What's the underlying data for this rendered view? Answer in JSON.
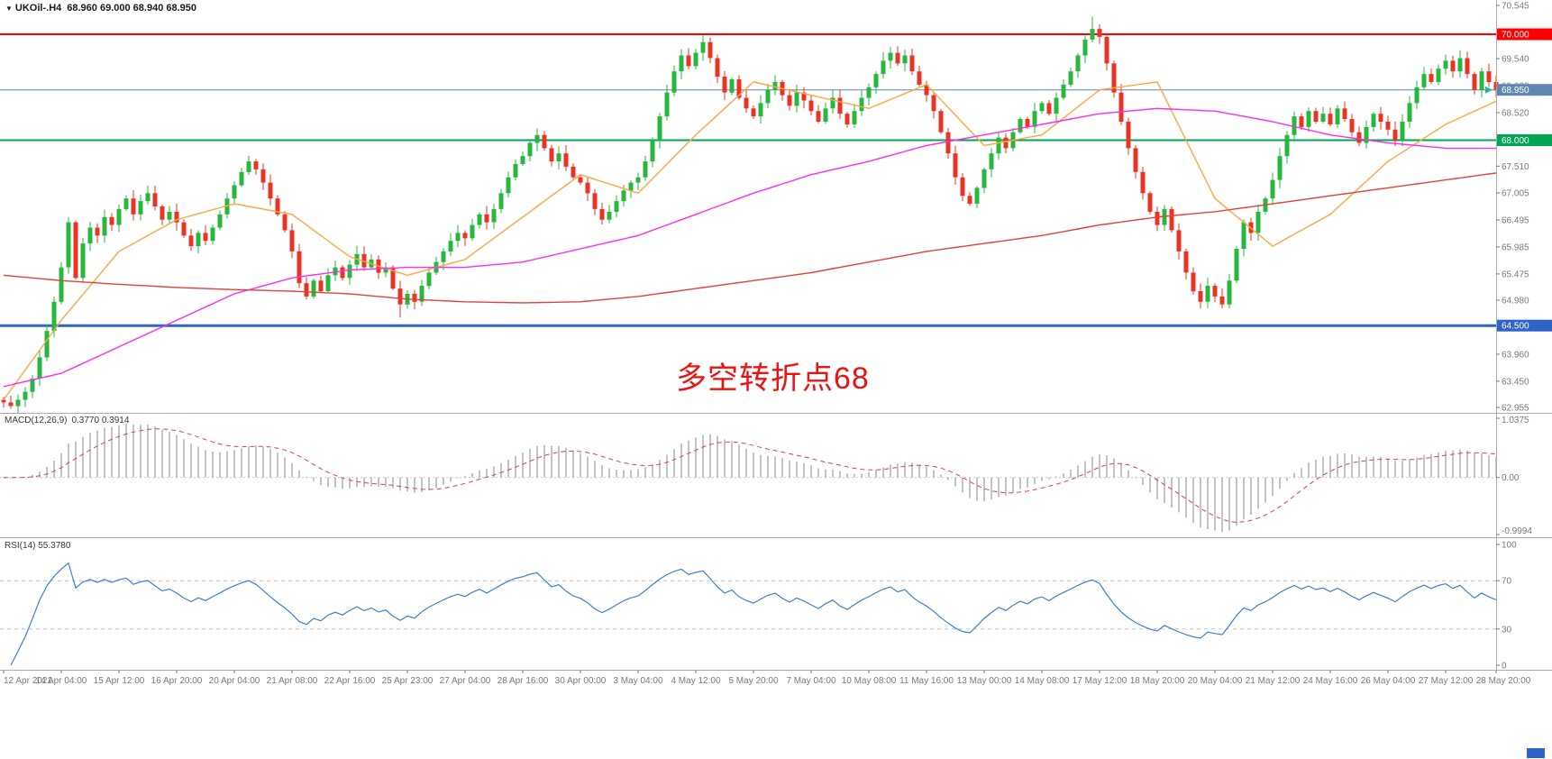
{
  "header": {
    "collapse_icon": "▼",
    "symbol": "UKOil-.H4",
    "ohlc": "68.960 69.000 68.940 68.950"
  },
  "chart_data": {
    "type": "candlestick",
    "symbol": "UKOil-",
    "timeframe": "H4",
    "ylim": [
      62.955,
      70.545
    ],
    "colors": {
      "up": "#25B83C",
      "down": "#EF3124",
      "ma_fast": "#FFA640",
      "ma_mid": "#FF2BF2",
      "ma_slow": "#E34234",
      "level_red": "#FF0000",
      "level_green": "#00A651",
      "level_blue": "#2E64C8",
      "current": "#5F87B0",
      "marker": "#20B2AA",
      "axis_text": "#7A7A7A",
      "separator": "#ADADAD",
      "macd_hist": "#ABABAB",
      "macd_signal": "#D94343",
      "rsi_line": "#3E7FD4",
      "annotation": "#EE1111"
    },
    "price_axis_labels": [
      {
        "v": 70.545,
        "t": "70.545",
        "k": "tick"
      },
      {
        "v": 70.0,
        "t": "70.000",
        "k": "red"
      },
      {
        "v": 69.54,
        "t": "69.540",
        "k": "tick"
      },
      {
        "v": 69.03,
        "t": "69.030",
        "k": "tick"
      },
      {
        "v": 68.95,
        "t": "68.950",
        "k": "current"
      },
      {
        "v": 68.52,
        "t": "68.520",
        "k": "tick"
      },
      {
        "v": 68.0,
        "t": "68.000",
        "k": "green"
      },
      {
        "v": 67.51,
        "t": "67.510",
        "k": "tick"
      },
      {
        "v": 67.005,
        "t": "67.005",
        "k": "tick"
      },
      {
        "v": 66.495,
        "t": "66.495",
        "k": "tick"
      },
      {
        "v": 65.985,
        "t": "65.985",
        "k": "tick"
      },
      {
        "v": 65.475,
        "t": "65.475",
        "k": "tick"
      },
      {
        "v": 64.98,
        "t": "64.980",
        "k": "tick"
      },
      {
        "v": 64.5,
        "t": "64.500",
        "k": "blue"
      },
      {
        "v": 63.96,
        "t": "63.960",
        "k": "tick"
      },
      {
        "v": 63.45,
        "t": "63.450",
        "k": "tick"
      },
      {
        "v": 62.955,
        "t": "62.955",
        "k": "tick"
      }
    ],
    "levels": [
      {
        "price": 70.0,
        "color": "#FF0000",
        "width": 2
      },
      {
        "price": 68.95,
        "color": "#5F87B0",
        "width": 1
      },
      {
        "price": 68.0,
        "color": "#00A651",
        "width": 2
      },
      {
        "price": 64.5,
        "color": "#2E64C8",
        "width": 3
      }
    ],
    "candles": {
      "open_first": 63.1,
      "closes": [
        63.05,
        62.98,
        63.1,
        63.25,
        63.5,
        63.9,
        64.4,
        64.95,
        65.6,
        66.45,
        65.4,
        66.05,
        66.35,
        66.2,
        66.55,
        66.4,
        66.7,
        66.9,
        66.6,
        66.85,
        67.0,
        66.75,
        66.5,
        66.65,
        66.45,
        66.2,
        66.0,
        66.25,
        66.1,
        66.35,
        66.6,
        66.9,
        67.15,
        67.4,
        67.6,
        67.45,
        67.2,
        66.9,
        66.6,
        66.3,
        65.9,
        65.3,
        65.05,
        65.35,
        65.15,
        65.45,
        65.6,
        65.4,
        65.65,
        65.85,
        65.6,
        65.75,
        65.5,
        65.6,
        65.2,
        64.9,
        65.1,
        64.95,
        65.25,
        65.5,
        65.7,
        65.9,
        66.1,
        66.25,
        66.15,
        66.4,
        66.6,
        66.45,
        66.7,
        67.0,
        67.3,
        67.55,
        67.7,
        67.95,
        68.1,
        67.85,
        67.6,
        67.75,
        67.5,
        67.3,
        67.2,
        67.0,
        66.7,
        66.5,
        66.65,
        66.85,
        67.05,
        67.2,
        67.3,
        67.6,
        68.0,
        68.45,
        68.9,
        69.3,
        69.6,
        69.4,
        69.65,
        69.85,
        69.55,
        69.2,
        68.9,
        69.15,
        68.8,
        68.6,
        68.45,
        68.7,
        68.95,
        69.1,
        68.85,
        68.65,
        68.9,
        68.75,
        68.55,
        68.35,
        68.6,
        68.8,
        68.5,
        68.3,
        68.55,
        68.8,
        69.0,
        69.25,
        69.5,
        69.65,
        69.45,
        69.6,
        69.3,
        69.05,
        68.85,
        68.55,
        68.15,
        67.75,
        67.3,
        66.95,
        66.8,
        67.1,
        67.45,
        67.75,
        68.05,
        67.85,
        68.15,
        68.4,
        68.25,
        68.55,
        68.7,
        68.5,
        68.8,
        69.05,
        69.3,
        69.6,
        69.9,
        70.1,
        69.95,
        69.45,
        68.9,
        68.35,
        67.85,
        67.4,
        67.0,
        66.65,
        66.4,
        66.7,
        66.3,
        65.9,
        65.5,
        65.15,
        64.95,
        65.25,
        65.05,
        64.9,
        65.35,
        65.95,
        66.45,
        66.25,
        66.65,
        66.9,
        67.25,
        67.7,
        68.1,
        68.45,
        68.25,
        68.55,
        68.35,
        68.5,
        68.3,
        68.6,
        68.4,
        68.15,
        67.95,
        68.25,
        68.5,
        68.35,
        68.2,
        68.0,
        68.35,
        68.7,
        69.0,
        69.25,
        69.1,
        69.35,
        69.5,
        69.3,
        69.55,
        69.25,
        68.95,
        69.3,
        69.1,
        68.95
      ],
      "extremes": [
        {
          "i": 1,
          "low": 62.93
        },
        {
          "i": 55,
          "low": 64.65
        },
        {
          "i": 151,
          "high": 70.33
        },
        {
          "i": 166,
          "low": 64.82
        }
      ]
    },
    "moving_averages": [
      {
        "name": "ma-fast",
        "color": "#FFA640",
        "anchors": [
          63.1,
          64.6,
          65.9,
          66.5,
          66.8,
          66.6,
          65.8,
          65.45,
          65.75,
          66.55,
          67.35,
          67.0,
          68.1,
          69.1,
          68.85,
          68.6,
          69.05,
          67.9,
          68.1,
          68.95,
          69.1,
          66.9,
          66.0,
          66.6,
          67.6,
          68.3,
          68.8
        ]
      },
      {
        "name": "ma-mid",
        "color": "#FF2BF2",
        "anchors": [
          63.35,
          63.6,
          64.1,
          64.6,
          65.1,
          65.4,
          65.55,
          65.6,
          65.6,
          65.7,
          65.95,
          66.2,
          66.6,
          67.0,
          67.35,
          67.6,
          67.9,
          68.1,
          68.3,
          68.5,
          68.6,
          68.55,
          68.35,
          68.1,
          67.95,
          67.85,
          67.85
        ]
      },
      {
        "name": "ma-slow",
        "color": "#E34234",
        "anchors": [
          65.45,
          65.35,
          65.28,
          65.22,
          65.18,
          65.15,
          65.1,
          65.0,
          64.95,
          64.93,
          64.95,
          65.05,
          65.2,
          65.35,
          65.5,
          65.7,
          65.9,
          66.05,
          66.2,
          66.4,
          66.55,
          66.65,
          66.8,
          66.95,
          67.1,
          67.25,
          67.4
        ]
      }
    ],
    "x_axis_labels": [
      {
        "i": 0,
        "t": "12 Apr 2021"
      },
      {
        "i": 8,
        "t": "14 Apr 04:00"
      },
      {
        "i": 16,
        "t": "15 Apr 12:00"
      },
      {
        "i": 24,
        "t": "16 Apr 20:00"
      },
      {
        "i": 32,
        "t": "20 Apr 04:00"
      },
      {
        "i": 40,
        "t": "21 Apr 08:00"
      },
      {
        "i": 48,
        "t": "22 Apr 16:00"
      },
      {
        "i": 56,
        "t": "25 Apr 23:00"
      },
      {
        "i": 64,
        "t": "27 Apr 04:00"
      },
      {
        "i": 72,
        "t": "28 Apr 16:00"
      },
      {
        "i": 80,
        "t": "30 Apr 00:00"
      },
      {
        "i": 88,
        "t": "3 May 04:00"
      },
      {
        "i": 96,
        "t": "4 May 12:00"
      },
      {
        "i": 104,
        "t": "5 May 20:00"
      },
      {
        "i": 112,
        "t": "7 May 04:00"
      },
      {
        "i": 120,
        "t": "10 May 08:00"
      },
      {
        "i": 128,
        "t": "11 May 16:00"
      },
      {
        "i": 136,
        "t": "13 May 00:00"
      },
      {
        "i": 144,
        "t": "14 May 08:00"
      },
      {
        "i": 152,
        "t": "17 May 12:00"
      },
      {
        "i": 160,
        "t": "18 May 20:00"
      },
      {
        "i": 168,
        "t": "20 May 04:00"
      },
      {
        "i": 176,
        "t": "21 May 12:00"
      },
      {
        "i": 184,
        "t": "24 May 16:00"
      },
      {
        "i": 192,
        "t": "26 May 04:00"
      },
      {
        "i": 200,
        "t": "27 May 12:00"
      },
      {
        "i": 208,
        "t": "28 May 20:00"
      }
    ],
    "annotation": {
      "text": "多空转折点68"
    },
    "macd": {
      "header": "MACD(12,26,9)",
      "values_text": "0.3770 0.3914",
      "fast": 12,
      "slow": 26,
      "signal": 9,
      "axis_labels": [
        {
          "v": 1.0375,
          "t": "1.0375"
        },
        {
          "v": 0,
          "t": "0.00"
        },
        {
          "v": -0.9994,
          "t": "-0.9994"
        }
      ]
    },
    "rsi": {
      "header": "RSI(14) 55.3780",
      "period": 14,
      "levels": [
        30,
        70
      ],
      "axis_labels": [
        {
          "v": 100,
          "t": "100"
        },
        {
          "v": 70,
          "t": "70"
        },
        {
          "v": 30,
          "t": "30"
        },
        {
          "v": 0,
          "t": "0"
        }
      ]
    }
  }
}
